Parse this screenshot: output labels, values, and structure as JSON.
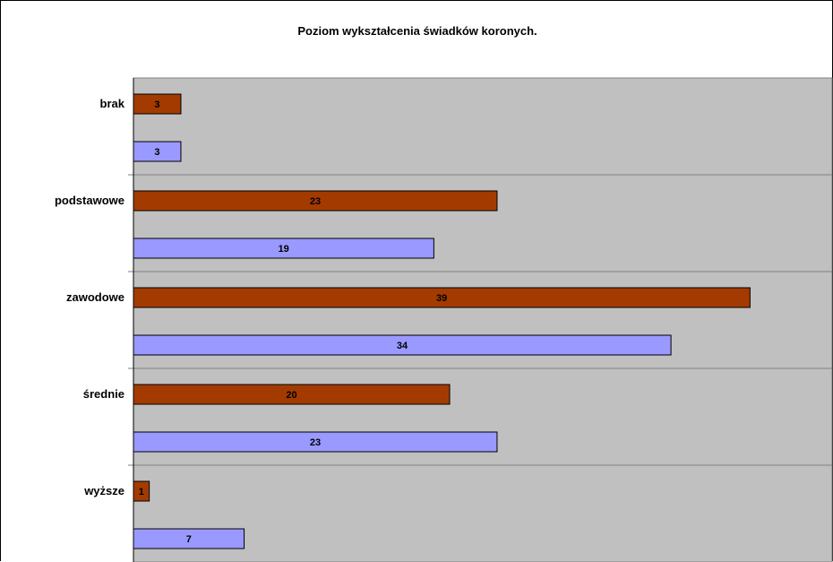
{
  "chart_data": {
    "type": "bar",
    "orientation": "horizontal",
    "title": "Poziom wykształcenia świadków koronych.",
    "categories": [
      "brak",
      "podstawowe",
      "zawodowe",
      "średnie",
      "wyższe"
    ],
    "series": [
      {
        "color": "#a33b00",
        "values": [
          3,
          23,
          39,
          20,
          1
        ]
      },
      {
        "color": "#9999ff",
        "values": [
          3,
          19,
          34,
          23,
          7
        ]
      }
    ],
    "xlim": [
      0,
      45
    ],
    "grid": true,
    "legend": "none",
    "plot_background": "#c0c0c0"
  }
}
